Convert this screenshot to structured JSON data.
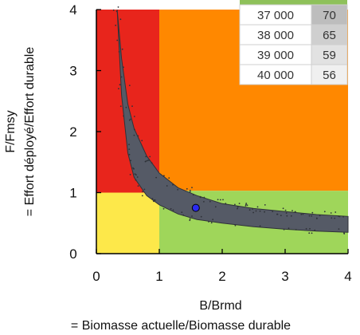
{
  "chart_data": {
    "type": "scatter",
    "x_axis": {
      "range": [
        0,
        4
      ],
      "ticks": [
        "0",
        "1",
        "2",
        "3",
        "4"
      ],
      "label_lines": [
        "B/Brmd",
        "= Biomasse actuelle/Biomasse durable"
      ]
    },
    "y_axis": {
      "range": [
        0,
        4
      ],
      "ticks": [
        "0",
        "1",
        "2",
        "3",
        "4"
      ],
      "label_lines": [
        "F/Fmsy",
        "= Effort déployé/Effort durable"
      ]
    },
    "zones": [
      {
        "name": "red",
        "x": [
          0,
          1
        ],
        "y": [
          1,
          4
        ],
        "color": "#e8251c"
      },
      {
        "name": "orange",
        "x": [
          1,
          4
        ],
        "y": [
          1.03,
          4
        ],
        "color": "#ff8800"
      },
      {
        "name": "yellow",
        "x": [
          0,
          1
        ],
        "y": [
          0,
          1
        ],
        "color": "#fde84a"
      },
      {
        "name": "green",
        "x": [
          1,
          4
        ],
        "y": [
          0,
          1.03
        ],
        "color": "#9fd65a"
      }
    ],
    "cloud": {
      "color": "#555a66",
      "upper_edge": [
        [
          0.33,
          4.0
        ],
        [
          0.4,
          3.2
        ],
        [
          0.5,
          2.45
        ],
        [
          0.6,
          2.05
        ],
        [
          0.8,
          1.6
        ],
        [
          1.0,
          1.32
        ],
        [
          1.3,
          1.08
        ],
        [
          1.6,
          0.95
        ],
        [
          2.0,
          0.82
        ],
        [
          2.5,
          0.74
        ],
        [
          3.0,
          0.69
        ],
        [
          3.5,
          0.64
        ],
        [
          4.0,
          0.61
        ]
      ],
      "lower_edge": [
        [
          4.0,
          0.35
        ],
        [
          3.5,
          0.37
        ],
        [
          3.0,
          0.4
        ],
        [
          2.5,
          0.44
        ],
        [
          2.0,
          0.5
        ],
        [
          1.6,
          0.56
        ],
        [
          1.3,
          0.65
        ],
        [
          1.0,
          0.8
        ],
        [
          0.8,
          0.95
        ],
        [
          0.6,
          1.25
        ],
        [
          0.5,
          1.65
        ],
        [
          0.4,
          2.6
        ],
        [
          0.33,
          4.0
        ]
      ]
    },
    "point": {
      "x": 1.58,
      "y": 0.75,
      "color": "#2a2af0"
    },
    "table": {
      "rows": [
        [
          "37 000",
          "70"
        ],
        [
          "38 000",
          "65"
        ],
        [
          "39 000",
          "59"
        ],
        [
          "40 000",
          "56"
        ]
      ],
      "value_fill": [
        "#bdbdbd",
        "#cfcfcf",
        "#e2e2e2",
        "#f0f0f0"
      ]
    }
  }
}
